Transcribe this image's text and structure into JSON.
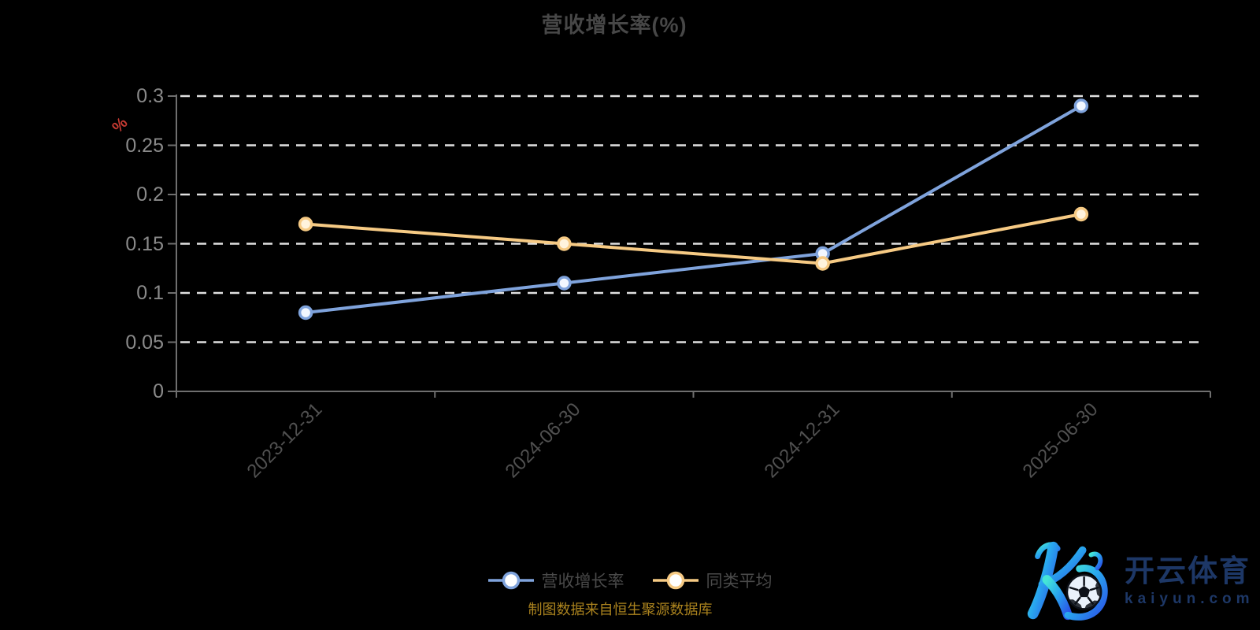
{
  "title": "营收增长率(%)",
  "chart_data": {
    "type": "line",
    "title": "营收增长率(%)",
    "categories": [
      "2023-12-31",
      "2024-06-30",
      "2024-12-31",
      "2025-06-30"
    ],
    "series": [
      {
        "name": "营收增长率",
        "color": "#7fa3dc",
        "marker_fill": "#f2f7ff",
        "values": [
          0.08,
          0.11,
          0.14,
          0.29
        ]
      },
      {
        "name": "同类平均",
        "color": "#f6ca84",
        "marker_fill": "#fff3dd",
        "values": [
          0.17,
          0.15,
          0.13,
          0.18
        ]
      }
    ],
    "xlabel": "",
    "ylabel": "%",
    "ylim": [
      0,
      0.3
    ],
    "yticks": [
      0,
      0.05,
      0.1,
      0.15,
      0.2,
      0.25,
      0.3
    ],
    "grid": "dashed-horizontal",
    "legend_position": "bottom-center"
  },
  "legend": [
    {
      "label": "营收增长率",
      "color": "#7fa3dc"
    },
    {
      "label": "同类平均",
      "color": "#f6ca84"
    }
  ],
  "source_note": "制图数据来自恒生聚源数据库",
  "watermark": {
    "brand": "开云体育",
    "domain": "kaiyun.com"
  },
  "ui_colors": {
    "background": "#000000",
    "title_text": "#474747",
    "axis": "#6f6f6f",
    "gridline": "#e0e0e0",
    "y_tick_text": "#8a8a8a",
    "x_tick_text": "#505050",
    "legend_text": "#4a4a4a",
    "unit_label": "#c63a32",
    "source_note": "#ab831e",
    "watermark_text": "#1d3766"
  }
}
